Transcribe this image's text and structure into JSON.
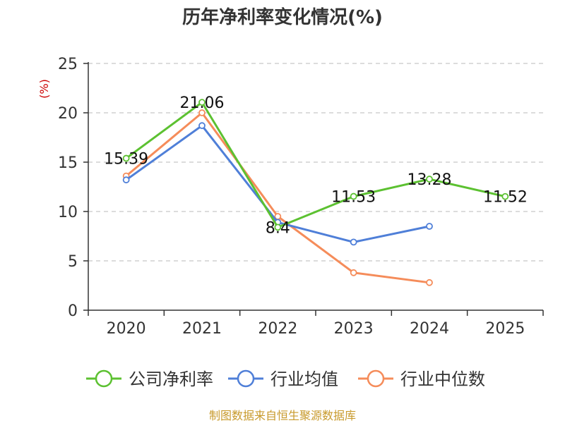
{
  "chart_data": {
    "type": "line",
    "title": "历年净利率变化情况(%)",
    "ylabel": "(%)",
    "xlabel": "",
    "categories": [
      "2020",
      "2021",
      "2022",
      "2023",
      "2024",
      "2025"
    ],
    "y_ticks": [
      "0",
      "5",
      "10",
      "15",
      "20",
      "25"
    ],
    "ylim": [
      0,
      25
    ],
    "grid": "horizontal-dashed",
    "legend_position": "bottom",
    "series": [
      {
        "name": "公司净利率",
        "color": "#5cc131",
        "values": [
          15.39,
          21.06,
          8.4,
          11.53,
          13.28,
          11.52
        ],
        "labels": [
          "15.39",
          "21.06",
          "8.4",
          "11.53",
          "13.28",
          "11.52"
        ]
      },
      {
        "name": "行业均值",
        "color": "#4f7fd8",
        "values": [
          13.2,
          18.7,
          8.9,
          6.9,
          8.5,
          null
        ]
      },
      {
        "name": "行业中位数",
        "color": "#f58c5a",
        "values": [
          13.6,
          20.0,
          9.5,
          3.8,
          2.8,
          null
        ]
      }
    ],
    "source": "制图数据来自恒生聚源数据库"
  }
}
